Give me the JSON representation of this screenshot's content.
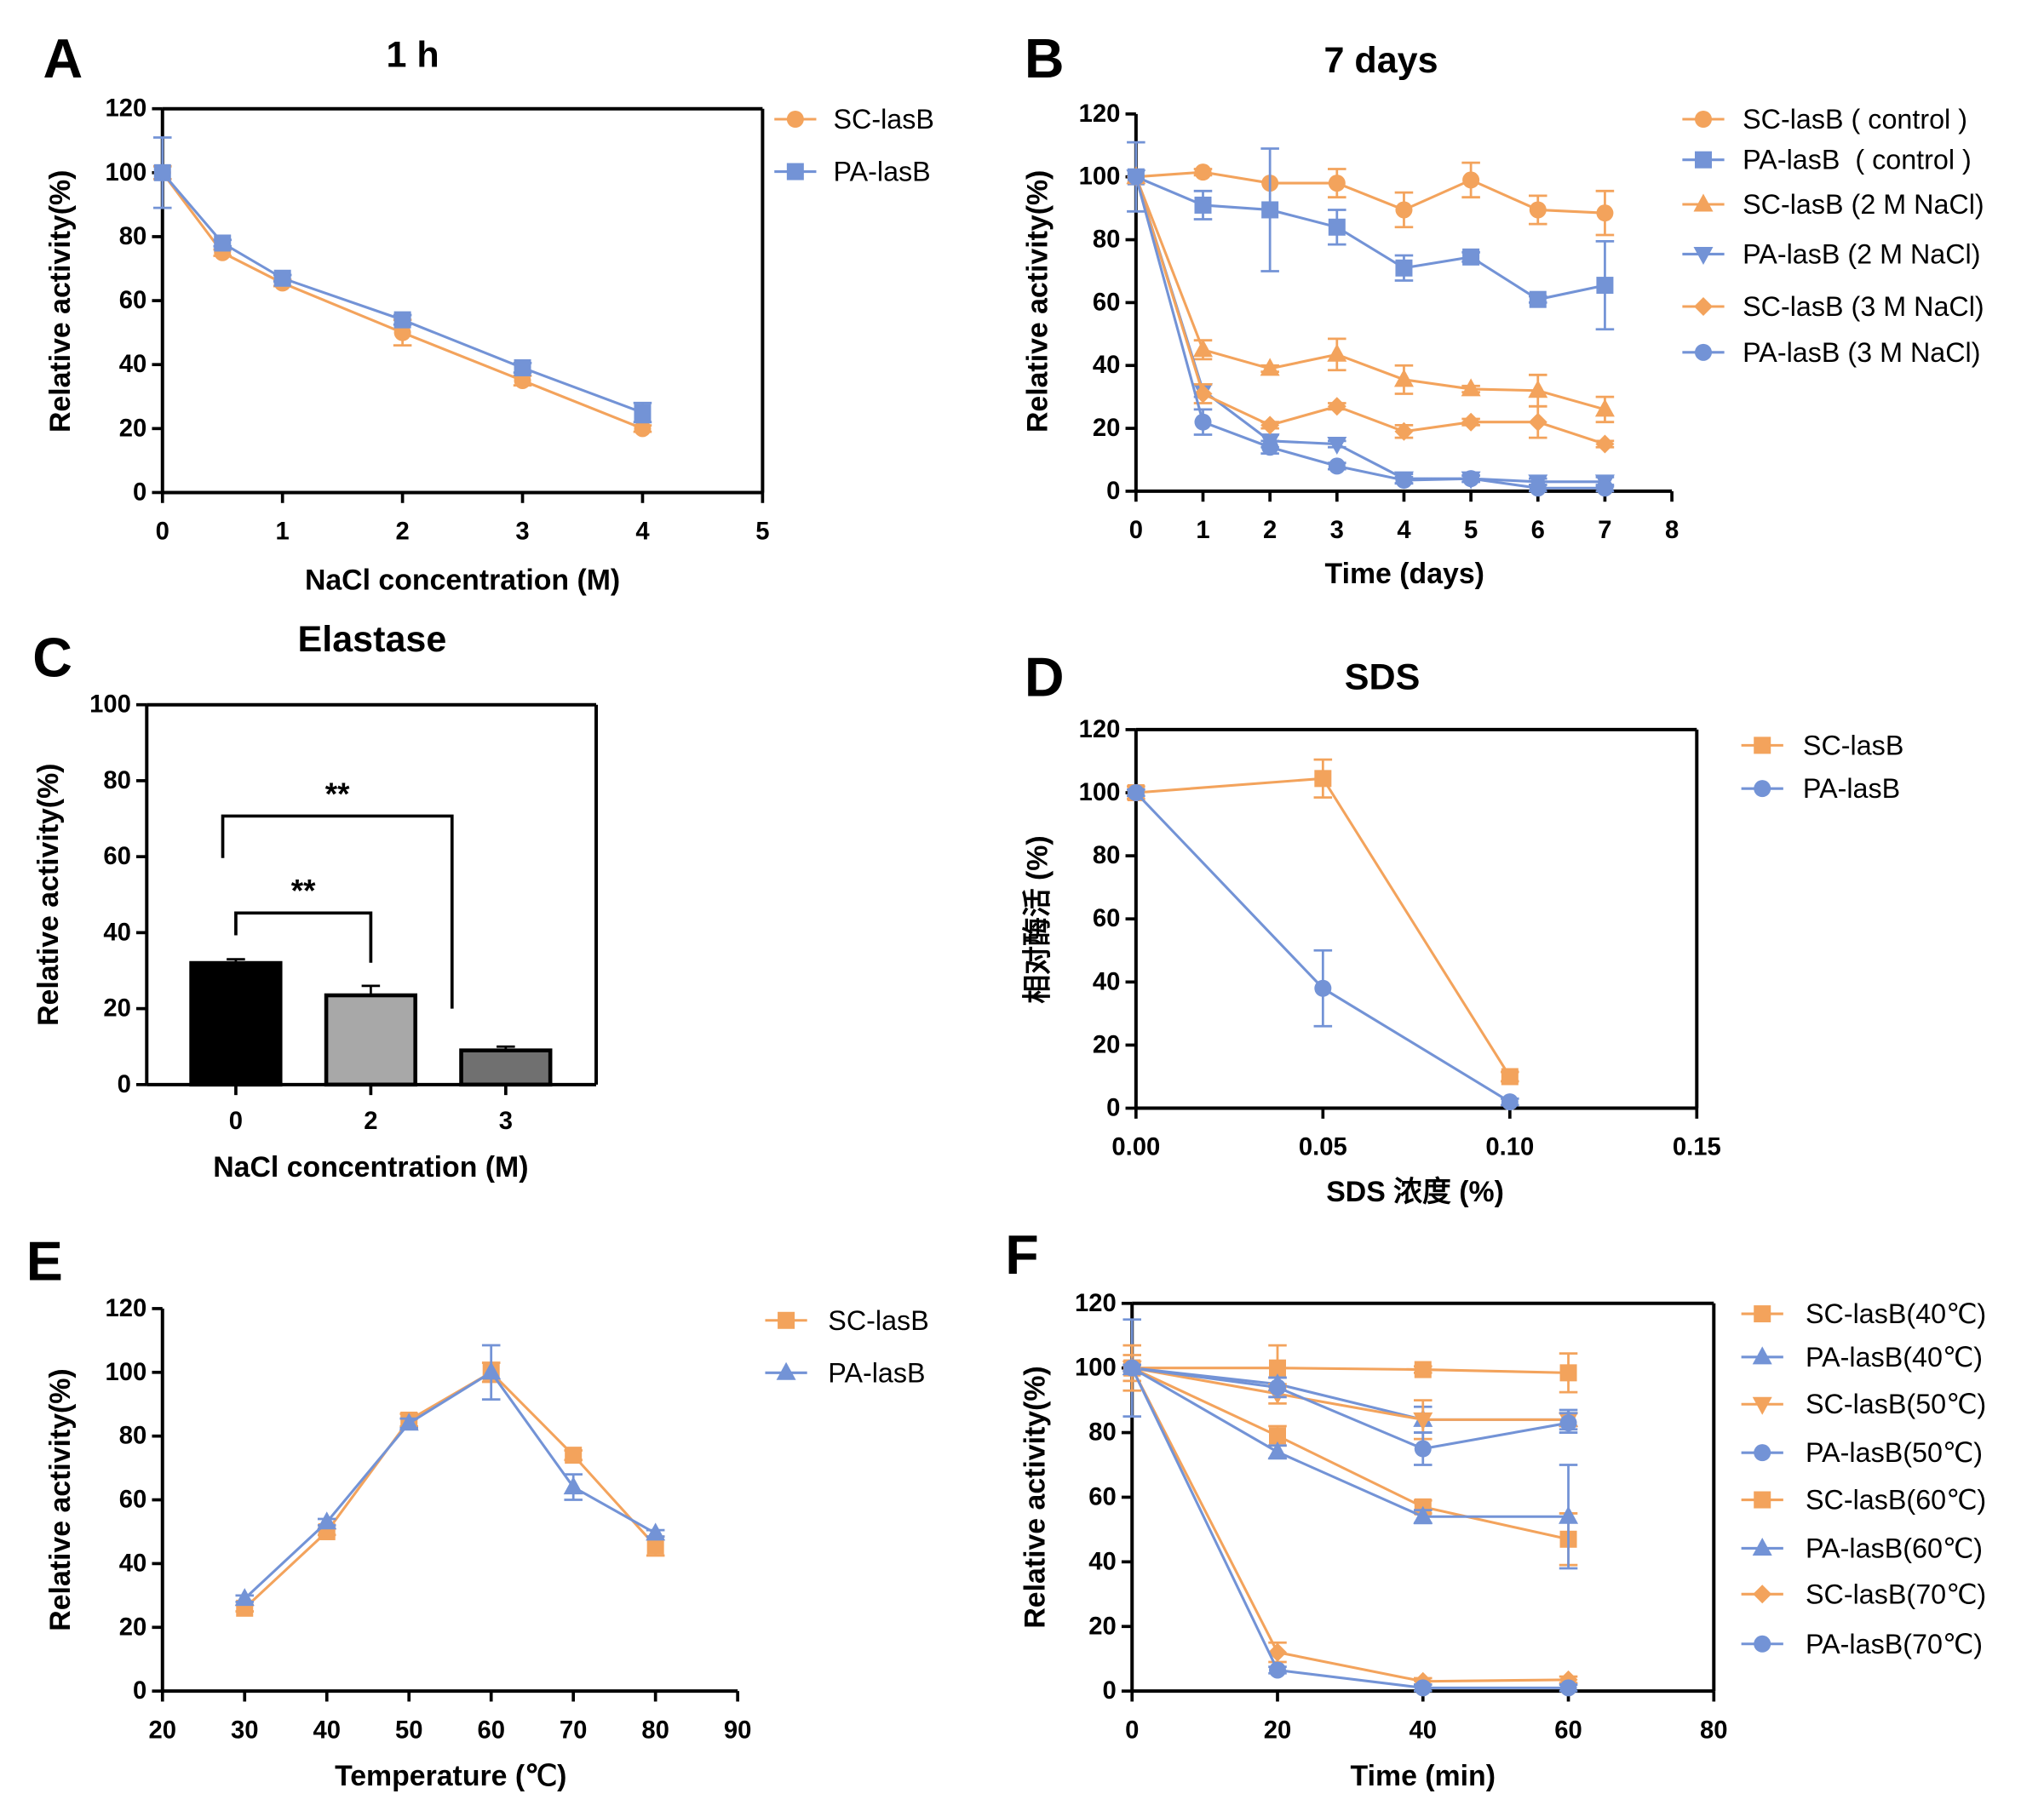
{
  "chart_data": [
    {
      "panel": "A",
      "type": "line",
      "title": "1 h",
      "xlabel": "NaCl concentration (M)",
      "ylabel": "Relative activity(%)",
      "xlim": [
        0,
        5
      ],
      "ylim": [
        0,
        120
      ],
      "xticks": [
        "0",
        "1",
        "2",
        "3",
        "4",
        "5"
      ],
      "yticks": [
        "0",
        "20",
        "40",
        "60",
        "80",
        "100",
        "120"
      ],
      "series": [
        {
          "name": "SC-lasB",
          "color": "#f3a35c",
          "marker": "circle",
          "x": [
            0,
            0.5,
            1,
            2,
            3,
            4
          ],
          "y": [
            100,
            75,
            65.5,
            50,
            35,
            20
          ],
          "err": [
            2,
            1,
            1,
            4,
            1.5,
            1
          ]
        },
        {
          "name": "PA-lasB",
          "color": "#7393d6",
          "marker": "square",
          "x": [
            0,
            0.5,
            1,
            2,
            3,
            4
          ],
          "y": [
            100,
            78,
            67,
            54,
            39,
            25
          ],
          "err": [
            11,
            1,
            1,
            1.5,
            1.5,
            3
          ]
        }
      ]
    },
    {
      "panel": "B",
      "type": "line",
      "title": "7 days",
      "xlabel": "Time (days)",
      "ylabel": "Relative activity(%)",
      "xlim": [
        0,
        8
      ],
      "ylim": [
        0,
        120
      ],
      "xticks": [
        "0",
        "1",
        "2",
        "3",
        "4",
        "5",
        "6",
        "7",
        "8"
      ],
      "yticks": [
        "0",
        "20",
        "40",
        "60",
        "80",
        "100",
        "120"
      ],
      "series": [
        {
          "name": "SC-lasB ( control )",
          "color": "#f3a35c",
          "marker": "circle",
          "x": [
            0,
            1,
            2,
            3,
            4,
            5,
            6,
            7
          ],
          "y": [
            100,
            101.5,
            98,
            98,
            89.5,
            99,
            89.5,
            88.5
          ],
          "err": [
            0,
            1,
            0,
            4.5,
            5.5,
            5.5,
            4.5,
            7
          ]
        },
        {
          "name": "PA-lasB  ( control )",
          "color": "#7393d6",
          "marker": "square",
          "x": [
            0,
            1,
            2,
            3,
            4,
            5,
            6,
            7
          ],
          "y": [
            100,
            91,
            89.5,
            84,
            71,
            74.5,
            61,
            65.5
          ],
          "err": [
            11,
            4.5,
            19.5,
            5.5,
            4,
            1.5,
            1,
            14
          ]
        },
        {
          "name": "SC-lasB (2 M NaCl)",
          "color": "#f3a35c",
          "marker": "triangle-up",
          "x": [
            0,
            1,
            2,
            3,
            4,
            5,
            6,
            7
          ],
          "y": [
            100,
            45,
            39,
            43.5,
            35.5,
            32.5,
            32,
            26
          ],
          "err": [
            0,
            3,
            1,
            5,
            4.5,
            1,
            5,
            4
          ]
        },
        {
          "name": "PA-lasB (2 M NaCl)",
          "color": "#7393d6",
          "marker": "triangle-down",
          "x": [
            0,
            1,
            2,
            3,
            4,
            5,
            6,
            7
          ],
          "y": [
            100,
            32,
            16,
            15,
            4,
            4,
            3,
            3
          ],
          "err": [
            0,
            2,
            2,
            1,
            1.5,
            1,
            1,
            1.5
          ]
        },
        {
          "name": "SC-lasB (3 M NaCl)",
          "color": "#f3a35c",
          "marker": "diamond",
          "x": [
            0,
            1,
            2,
            3,
            4,
            5,
            6,
            7
          ],
          "y": [
            100,
            31,
            21,
            27,
            19,
            22,
            22,
            15
          ],
          "err": [
            0,
            3,
            1,
            1,
            2,
            1,
            5,
            1
          ]
        },
        {
          "name": "PA-lasB (3 M NaCl)",
          "color": "#7393d6",
          "marker": "circle",
          "x": [
            0,
            1,
            2,
            3,
            4,
            5,
            6,
            7
          ],
          "y": [
            100,
            22,
            14,
            8,
            3.5,
            4,
            1,
            1
          ],
          "err": [
            0,
            4,
            2,
            1,
            1,
            1,
            1,
            1
          ]
        }
      ]
    },
    {
      "panel": "C",
      "type": "bar",
      "title": "Elastase",
      "xlabel": "NaCl concentration (M)",
      "ylabel": "Relative activity(%)",
      "ylim": [
        0,
        100
      ],
      "yticks": [
        "0",
        "20",
        "40",
        "60",
        "80",
        "100"
      ],
      "categories": [
        "0",
        "2",
        "3"
      ],
      "values": [
        32,
        23.5,
        9
      ],
      "errors": [
        1,
        2.5,
        1
      ],
      "bar_colors": [
        "#000000",
        "#a8a8a8",
        "#707070"
      ],
      "annotations": [
        {
          "text": "**",
          "from": "0",
          "to": "3"
        },
        {
          "text": "**",
          "from": "0",
          "to": "2"
        }
      ]
    },
    {
      "panel": "D",
      "type": "line",
      "title": "SDS",
      "xlabel": "SDS 浓度 (%)",
      "ylabel": "相对酶活 (%)",
      "xlim": [
        0,
        0.15
      ],
      "ylim": [
        0,
        120
      ],
      "xticks": [
        "0.00",
        "0.05",
        "0.10",
        "0.15"
      ],
      "yticks": [
        "0",
        "20",
        "40",
        "60",
        "80",
        "100",
        "120"
      ],
      "series": [
        {
          "name": "SC-lasB",
          "color": "#f3a35c",
          "marker": "square",
          "x": [
            0,
            0.05,
            0.1
          ],
          "y": [
            100,
            104.5,
            10
          ],
          "err": [
            2,
            6,
            1.5
          ]
        },
        {
          "name": "PA-lasB",
          "color": "#7393d6",
          "marker": "circle",
          "x": [
            0,
            0.05,
            0.1
          ],
          "y": [
            100,
            38,
            2
          ],
          "err": [
            1,
            12,
            1
          ]
        }
      ]
    },
    {
      "panel": "E",
      "type": "line",
      "xlabel": "Temperature (℃)",
      "ylabel": "Relative activity(%)",
      "xlim": [
        20,
        90
      ],
      "ylim": [
        0,
        120
      ],
      "xticks": [
        "20",
        "30",
        "40",
        "50",
        "60",
        "70",
        "80",
        "90"
      ],
      "yticks": [
        "0",
        "20",
        "40",
        "60",
        "80",
        "100",
        "120"
      ],
      "series": [
        {
          "name": "SC-lasB",
          "color": "#f3a35c",
          "marker": "square",
          "x": [
            30,
            40,
            50,
            60,
            70,
            80
          ],
          "y": [
            26,
            50,
            85,
            100,
            74,
            45.5
          ],
          "err": [
            1,
            1,
            2,
            3,
            1.5,
            3
          ]
        },
        {
          "name": "PA-lasB",
          "color": "#7393d6",
          "marker": "triangle-up",
          "x": [
            30,
            40,
            50,
            60,
            70,
            80
          ],
          "y": [
            29,
            53,
            84,
            100,
            64,
            49.5
          ],
          "err": [
            1,
            1,
            1.5,
            8.5,
            4,
            1
          ]
        }
      ]
    },
    {
      "panel": "F",
      "type": "line",
      "xlabel": "Time (min)",
      "ylabel": "Relative activity(%)",
      "xlim": [
        0,
        80
      ],
      "ylim": [
        0,
        120
      ],
      "xticks": [
        "0",
        "20",
        "40",
        "60",
        "80"
      ],
      "yticks": [
        "0",
        "20",
        "40",
        "60",
        "80",
        "100",
        "120"
      ],
      "series": [
        {
          "name": "SC-lasB(40℃)",
          "color": "#f3a35c",
          "marker": "square",
          "x": [
            0,
            20,
            40,
            60
          ],
          "y": [
            100,
            100,
            99.5,
            98.5
          ],
          "err": [
            4,
            7,
            1,
            6
          ]
        },
        {
          "name": "PA-lasB(40℃)",
          "color": "#7393d6",
          "marker": "triangle-up",
          "x": [
            0,
            20,
            40,
            60
          ],
          "y": [
            100,
            95,
            84,
            84
          ],
          "err": [
            15,
            2,
            4,
            3
          ]
        },
        {
          "name": "SC-lasB(50℃)",
          "color": "#f3a35c",
          "marker": "triangle-down",
          "x": [
            0,
            20,
            40,
            60
          ],
          "y": [
            100,
            92,
            84,
            84
          ],
          "err": [
            7,
            3,
            6,
            2
          ]
        },
        {
          "name": "PA-lasB(50℃)",
          "color": "#7393d6",
          "marker": "circle",
          "x": [
            0,
            20,
            40,
            60
          ],
          "y": [
            100,
            94,
            75,
            83
          ],
          "err": [
            1,
            3,
            5,
            3
          ]
        },
        {
          "name": "SC-lasB(60℃)",
          "color": "#f3a35c",
          "marker": "square",
          "x": [
            0,
            20,
            40,
            60
          ],
          "y": [
            100,
            79,
            57,
            47
          ],
          "err": [
            1,
            3,
            2,
            8
          ]
        },
        {
          "name": "PA-lasB(60℃)",
          "color": "#7393d6",
          "marker": "triangle-up",
          "x": [
            0,
            20,
            40,
            60
          ],
          "y": [
            100,
            74,
            54,
            54
          ],
          "err": [
            1,
            2,
            2,
            16
          ]
        },
        {
          "name": "SC-lasB(70℃)",
          "color": "#f3a35c",
          "marker": "diamond",
          "x": [
            0,
            20,
            40,
            60
          ],
          "y": [
            100,
            12,
            3,
            3.5
          ],
          "err": [
            1,
            3,
            1,
            1
          ]
        },
        {
          "name": "PA-lasB(70℃)",
          "color": "#7393d6",
          "marker": "circle",
          "x": [
            0,
            20,
            40,
            60
          ],
          "y": [
            100,
            6.5,
            1,
            1
          ],
          "err": [
            1,
            1,
            1,
            1
          ]
        }
      ]
    }
  ]
}
